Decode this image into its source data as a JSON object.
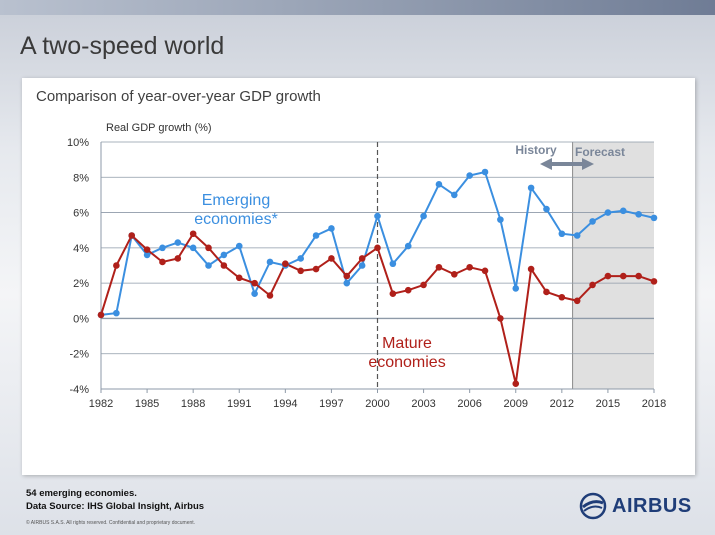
{
  "slide": {
    "title": "A two-speed world",
    "footnote_1": "54 emerging economies.",
    "footnote_2": "Data Source: IHS Global Insight, Airbus",
    "copyright": "© AIRBUS S.A.S. All rights reserved. Confidential and proprietary document.",
    "logo_text": "AIRBUS"
  },
  "colors": {
    "emerging": "#3b8fe0",
    "mature": "#b0201a",
    "forecast_shade": "#e0e0e0",
    "arrow": "#7a8699"
  },
  "chart_data": {
    "type": "line",
    "title": "Comparison of year-over-year GDP growth",
    "ylabel": "Real GDP growth (%)",
    "xlabel": "",
    "xlim": [
      1982,
      2018
    ],
    "ylim": [
      -4,
      10
    ],
    "x_ticks": [
      "1982",
      "1985",
      "1988",
      "1991",
      "1994",
      "1997",
      "2000",
      "2003",
      "2006",
      "2009",
      "2012",
      "2015",
      "2018"
    ],
    "y_ticks": [
      "10%",
      "8%",
      "6%",
      "4%",
      "2%",
      "0%",
      "-2%",
      "-4%"
    ],
    "grid": "horizontal",
    "x": [
      1982,
      1983,
      1984,
      1985,
      1986,
      1987,
      1988,
      1989,
      1990,
      1991,
      1992,
      1993,
      1994,
      1995,
      1996,
      1997,
      1998,
      1999,
      2000,
      2001,
      2002,
      2003,
      2004,
      2005,
      2006,
      2007,
      2008,
      2009,
      2010,
      2011,
      2012,
      2013,
      2014,
      2015,
      2016,
      2017,
      2018
    ],
    "series": [
      {
        "name": "Emerging economies*",
        "values": [
          0.2,
          0.3,
          4.7,
          3.6,
          4.0,
          4.3,
          4.0,
          3.0,
          3.6,
          4.1,
          1.4,
          3.2,
          3.0,
          3.4,
          4.7,
          5.1,
          2.0,
          3.0,
          5.8,
          3.1,
          4.1,
          5.8,
          7.6,
          7.0,
          8.1,
          8.3,
          5.6,
          1.7,
          7.4,
          6.2,
          4.8,
          4.7,
          5.5,
          6.0,
          6.1,
          5.9,
          5.7
        ]
      },
      {
        "name": "Mature economies",
        "values": [
          0.2,
          3.0,
          4.7,
          3.9,
          3.2,
          3.4,
          4.8,
          4.0,
          3.0,
          2.3,
          2.0,
          1.3,
          3.1,
          2.7,
          2.8,
          3.4,
          2.4,
          3.4,
          4.0,
          1.4,
          1.6,
          1.9,
          2.9,
          2.5,
          2.9,
          2.7,
          0.0,
          -3.7,
          2.8,
          1.5,
          1.2,
          1.0,
          1.9,
          2.4,
          2.4,
          2.4,
          2.1
        ]
      }
    ],
    "annotations": {
      "history": "History",
      "forecast": "Forecast",
      "emerging_line1": "Emerging",
      "emerging_line2": "economies*",
      "mature_line1": "Mature",
      "mature_line2": "economies"
    },
    "dashed_marker_x": 2000,
    "forecast_start_x": 2012.7
  }
}
